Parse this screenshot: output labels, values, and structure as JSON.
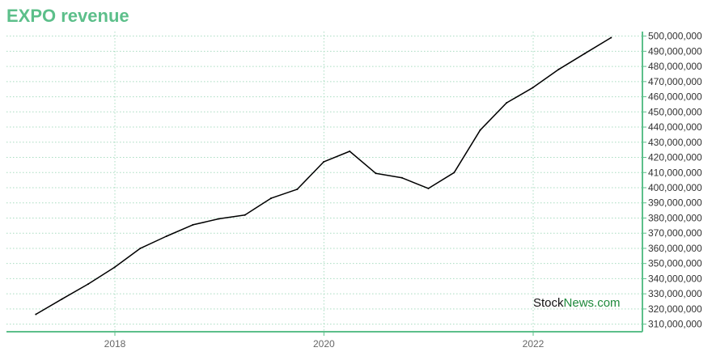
{
  "chart_data": {
    "type": "line",
    "title": "EXPO revenue",
    "xlabel": "",
    "ylabel": "",
    "x_ticks": [
      "2018",
      "2020",
      "2022"
    ],
    "ylim": [
      305000000,
      503000000
    ],
    "y_ticks": [
      310000000,
      320000000,
      330000000,
      340000000,
      350000000,
      360000000,
      370000000,
      380000000,
      390000000,
      400000000,
      410000000,
      420000000,
      430000000,
      440000000,
      450000000,
      460000000,
      470000000,
      480000000,
      490000000,
      500000000
    ],
    "y_tick_labels": [
      "310,000,000",
      "320,000,000",
      "330,000,000",
      "340,000,000",
      "350,000,000",
      "360,000,000",
      "370,000,000",
      "380,000,000",
      "390,000,000",
      "400,000,000",
      "410,000,000",
      "420,000,000",
      "430,000,000",
      "440,000,000",
      "450,000,000",
      "460,000,000",
      "470,000,000",
      "480,000,000",
      "490,000,000",
      "500,000,000"
    ],
    "series": [
      {
        "x": [
          "2017-03-31",
          "2017-06-30",
          "2017-09-30",
          "2017-12-31",
          "2018-03-31",
          "2018-06-30",
          "2018-09-30",
          "2018-12-31",
          "2019-03-31",
          "2019-06-30",
          "2019-09-30",
          "2019-12-31",
          "2020-03-31",
          "2020-06-30",
          "2020-09-30",
          "2020-12-31",
          "2021-03-31",
          "2021-06-30",
          "2021-09-30",
          "2021-12-31",
          "2022-03-31",
          "2022-06-30",
          "2022-09-30"
        ],
        "values": [
          316500000,
          326500000,
          336500000,
          347500000,
          360000000,
          368000000,
          375500000,
          379500000,
          382000000,
          393000000,
          399000000,
          417000000,
          424000000,
          409500000,
          406500000,
          399500000,
          410000000,
          438000000,
          456000000,
          466000000,
          478000000,
          488500000,
          499000000
        ]
      }
    ],
    "grid": true,
    "line_color": "#000000",
    "accent_color": "#5cbf8a",
    "grid_color": "#a8dcc0",
    "axis_color": "#5cbf8a"
  },
  "watermark": {
    "part1": "Stock",
    "part2": "News",
    "part3": ".com",
    "color1": "#111111",
    "color2": "#1e8a3c"
  }
}
